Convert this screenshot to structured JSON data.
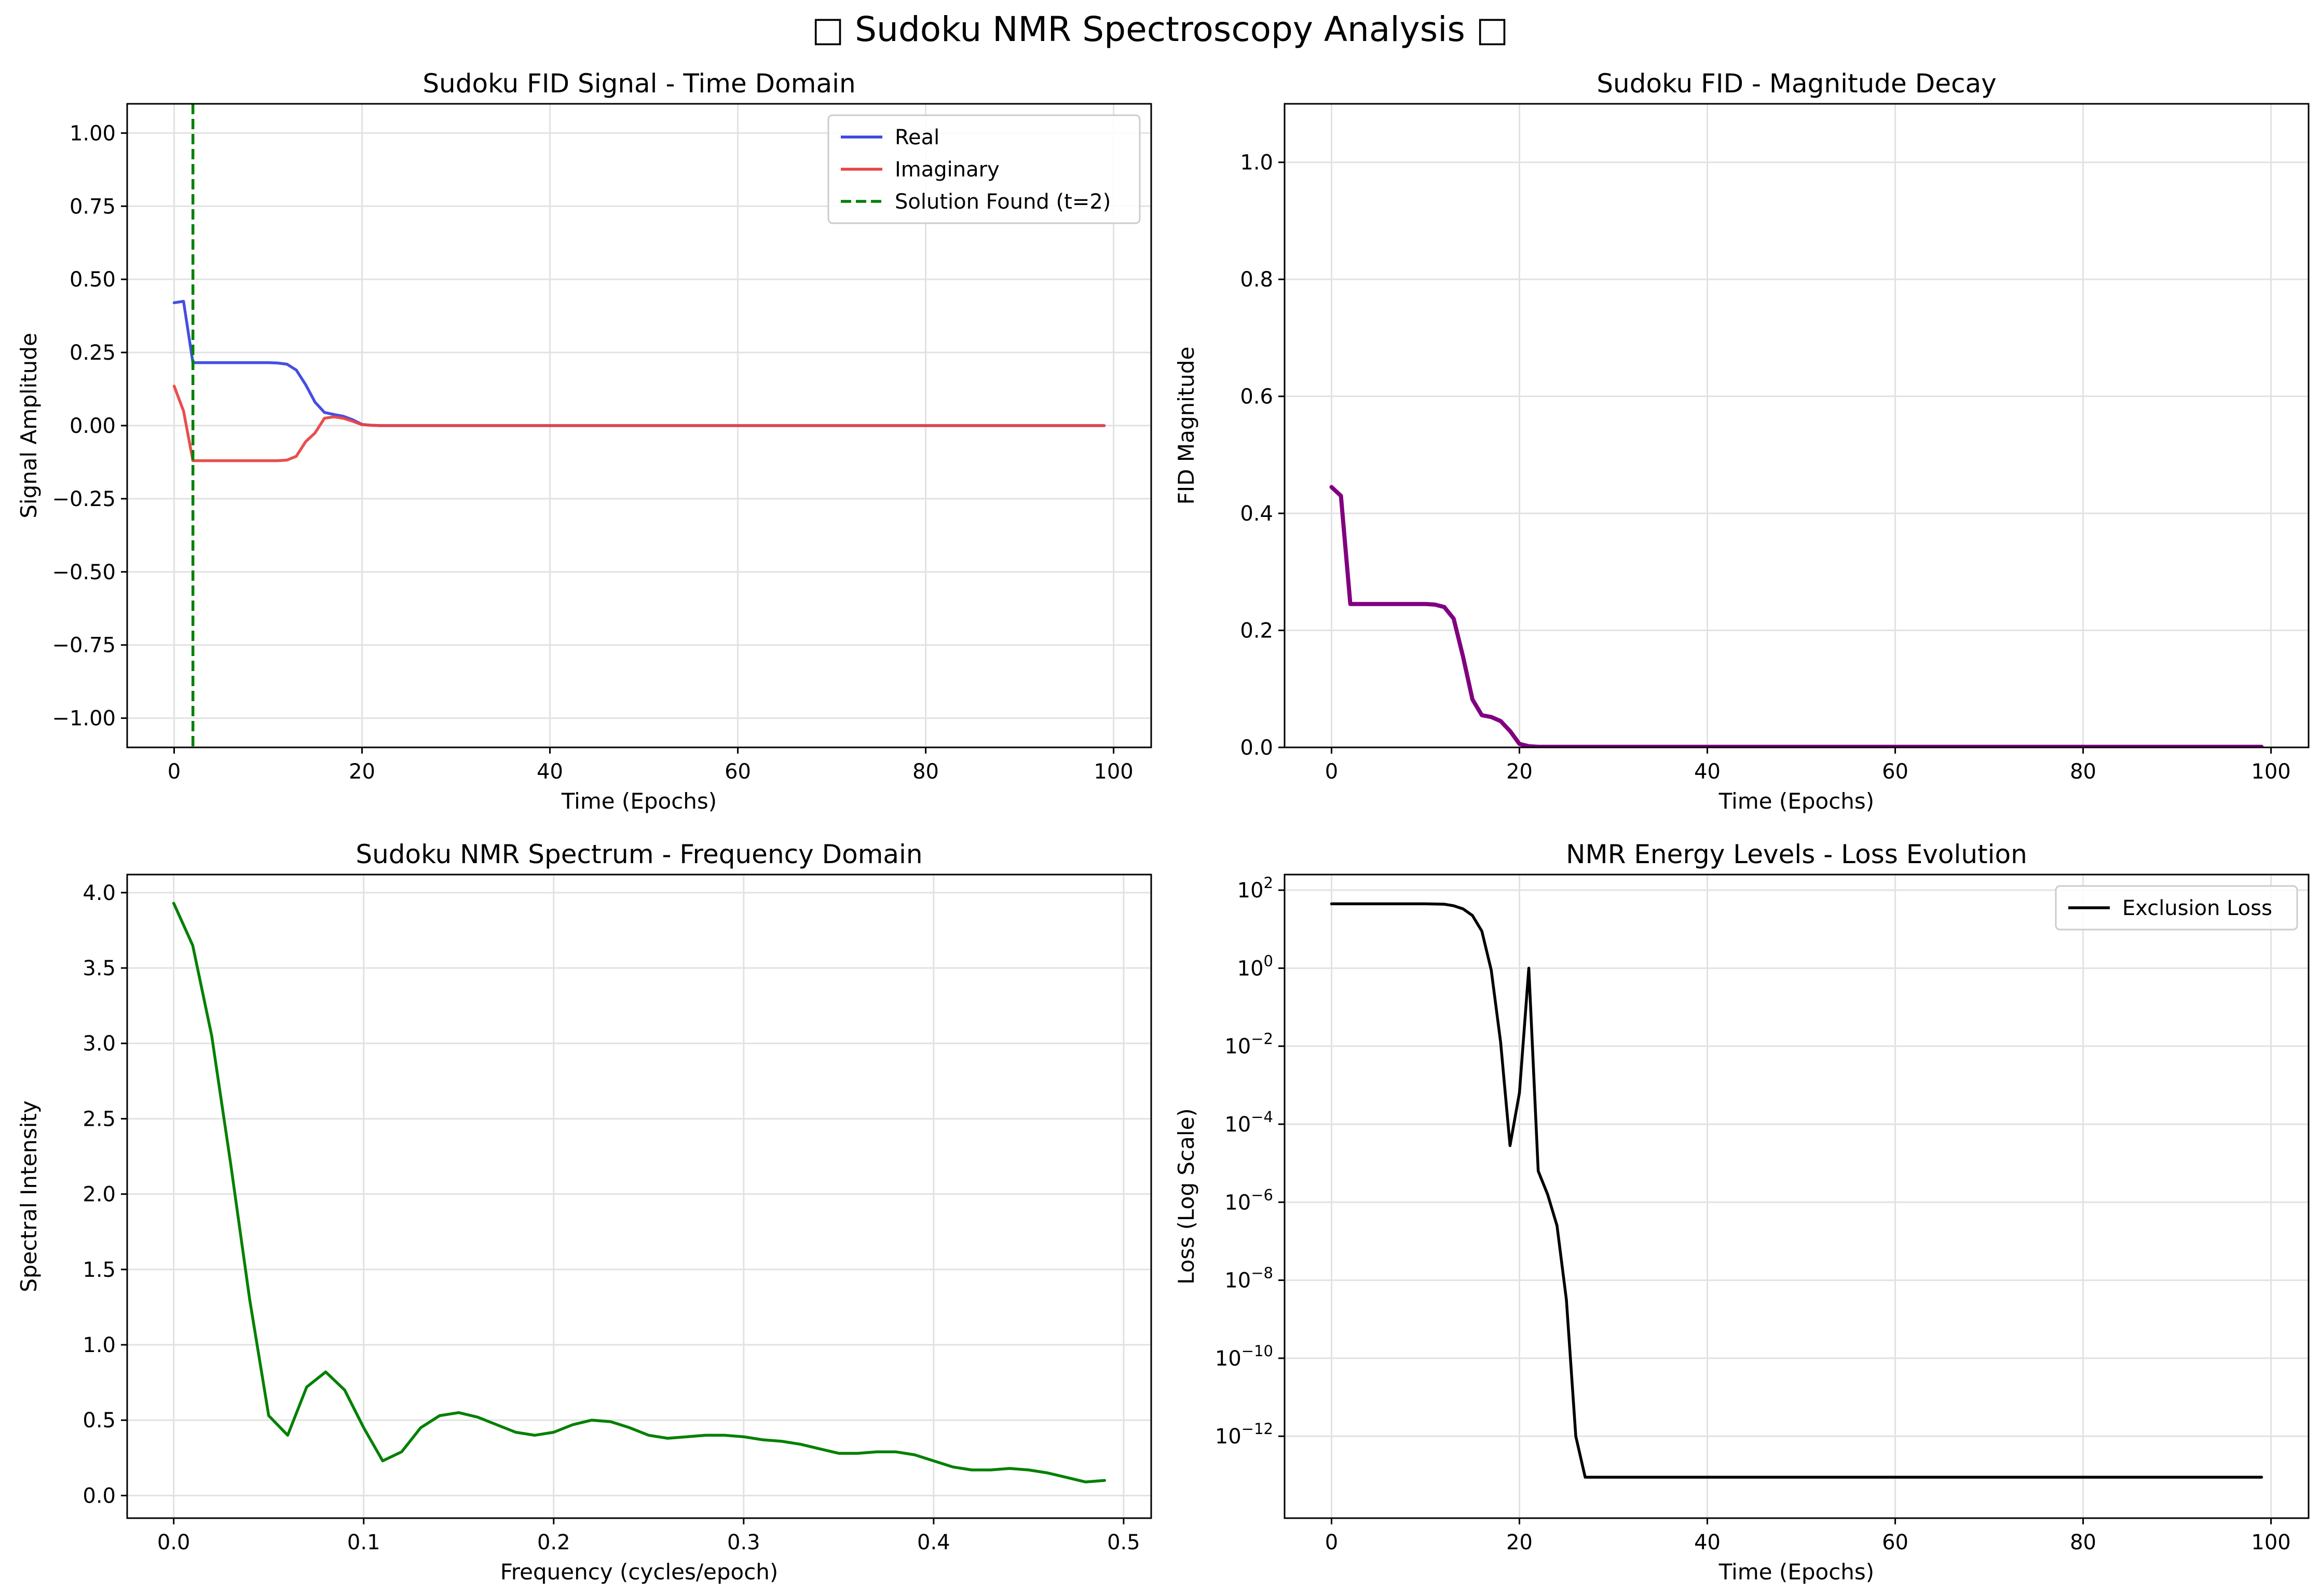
{
  "figure": {
    "title": "□ Sudoku NMR Spectroscopy Analysis □"
  },
  "chart_data": [
    {
      "id": "fid-time",
      "type": "line",
      "title": "Sudoku FID Signal - Time Domain",
      "xlabel": "Time (Epochs)",
      "ylabel": "Signal Amplitude",
      "xlim": [
        -5,
        104
      ],
      "ylim": [
        -1.1,
        1.1
      ],
      "xticks": [
        0,
        20,
        40,
        60,
        80,
        100
      ],
      "xtick_labels": [
        "0",
        "20",
        "40",
        "60",
        "80",
        "100"
      ],
      "yticks": [
        -1.0,
        -0.75,
        -0.5,
        -0.25,
        0.0,
        0.25,
        0.5,
        0.75,
        1.0
      ],
      "ytick_labels": [
        "−1.00",
        "−0.75",
        "−0.50",
        "−0.25",
        "0.00",
        "0.25",
        "0.50",
        "0.75",
        "1.00"
      ],
      "grid": true,
      "legend_position": "top-right",
      "series": [
        {
          "name": "Real",
          "color": "#3b46e0",
          "x": [
            0,
            1,
            2,
            3,
            4,
            5,
            6,
            7,
            8,
            9,
            10,
            11,
            12,
            13,
            14,
            15,
            16,
            17,
            18,
            19,
            20,
            21,
            22,
            30,
            40,
            50,
            60,
            70,
            80,
            90,
            99
          ],
          "y": [
            0.42,
            0.425,
            0.215,
            0.215,
            0.215,
            0.215,
            0.215,
            0.215,
            0.215,
            0.215,
            0.215,
            0.214,
            0.21,
            0.19,
            0.14,
            0.08,
            0.045,
            0.038,
            0.032,
            0.02,
            0.004,
            0.001,
            0,
            0,
            0,
            0,
            0,
            0,
            0,
            0,
            0
          ]
        },
        {
          "name": "Imaginary",
          "color": "#e84444",
          "x": [
            0,
            1,
            2,
            3,
            4,
            5,
            6,
            7,
            8,
            9,
            10,
            11,
            12,
            13,
            14,
            15,
            16,
            17,
            18,
            19,
            20,
            21,
            22,
            30,
            40,
            50,
            60,
            70,
            80,
            90,
            99
          ],
          "y": [
            0.135,
            0.05,
            -0.12,
            -0.12,
            -0.12,
            -0.12,
            -0.12,
            -0.12,
            -0.12,
            -0.12,
            -0.12,
            -0.12,
            -0.118,
            -0.105,
            -0.055,
            -0.025,
            0.025,
            0.03,
            0.025,
            0.015,
            0.003,
            0.001,
            0,
            0,
            0,
            0,
            0,
            0,
            0,
            0,
            0
          ]
        }
      ],
      "vlines": [
        {
          "name": "Solution Found (t=2)",
          "x": 2,
          "color": "#008000",
          "style": "dashed"
        }
      ]
    },
    {
      "id": "fid-magnitude",
      "type": "line",
      "title": "Sudoku FID - Magnitude Decay",
      "xlabel": "Time (Epochs)",
      "ylabel": "FID Magnitude",
      "xlim": [
        -5,
        104
      ],
      "ylim": [
        0,
        1.1
      ],
      "xticks": [
        0,
        20,
        40,
        60,
        80,
        100
      ],
      "xtick_labels": [
        "0",
        "20",
        "40",
        "60",
        "80",
        "100"
      ],
      "yticks": [
        0,
        0.2,
        0.4,
        0.6,
        0.8,
        1.0
      ],
      "ytick_labels": [
        "0.0",
        "0.2",
        "0.4",
        "0.6",
        "0.8",
        "1.0"
      ],
      "grid": true,
      "series": [
        {
          "color": "#800080",
          "x": [
            0,
            1,
            2,
            3,
            4,
            5,
            6,
            7,
            8,
            9,
            10,
            11,
            12,
            13,
            14,
            15,
            16,
            17,
            18,
            19,
            20,
            21,
            22,
            30,
            40,
            50,
            60,
            70,
            80,
            90,
            99
          ],
          "y": [
            0.445,
            0.43,
            0.245,
            0.245,
            0.245,
            0.245,
            0.245,
            0.245,
            0.245,
            0.245,
            0.245,
            0.244,
            0.24,
            0.22,
            0.155,
            0.082,
            0.055,
            0.052,
            0.045,
            0.028,
            0.006,
            0.002,
            0.001,
            0.001,
            0.001,
            0.001,
            0.001,
            0.001,
            0.001,
            0.001,
            0.001
          ]
        }
      ]
    },
    {
      "id": "nmr-spectrum",
      "type": "line",
      "title": "Sudoku NMR Spectrum - Frequency Domain",
      "xlabel": "Frequency (cycles/epoch)",
      "ylabel": "Spectral Intensity",
      "xlim": [
        -0.0245,
        0.5145
      ],
      "ylim": [
        -0.15,
        4.12
      ],
      "xticks": [
        0,
        0.1,
        0.2,
        0.3,
        0.4,
        0.5
      ],
      "xtick_labels": [
        "0.0",
        "0.1",
        "0.2",
        "0.3",
        "0.4",
        "0.5"
      ],
      "yticks": [
        0,
        0.5,
        1.0,
        1.5,
        2.0,
        2.5,
        3.0,
        3.5,
        4.0
      ],
      "ytick_labels": [
        "0.0",
        "0.5",
        "1.0",
        "1.5",
        "2.0",
        "2.5",
        "3.0",
        "3.5",
        "4.0"
      ],
      "grid": true,
      "series": [
        {
          "color": "#008000",
          "x": [
            0,
            0.01,
            0.02,
            0.03,
            0.04,
            0.05,
            0.06,
            0.07,
            0.08,
            0.09,
            0.1,
            0.11,
            0.12,
            0.13,
            0.14,
            0.15,
            0.16,
            0.17,
            0.18,
            0.19,
            0.2,
            0.21,
            0.22,
            0.23,
            0.24,
            0.25,
            0.26,
            0.27,
            0.28,
            0.29,
            0.3,
            0.31,
            0.32,
            0.33,
            0.34,
            0.35,
            0.36,
            0.37,
            0.38,
            0.39,
            0.4,
            0.41,
            0.42,
            0.43,
            0.44,
            0.45,
            0.46,
            0.47,
            0.48,
            0.49
          ],
          "y": [
            3.93,
            3.65,
            3.05,
            2.2,
            1.3,
            0.53,
            0.4,
            0.72,
            0.82,
            0.7,
            0.45,
            0.23,
            0.29,
            0.45,
            0.53,
            0.55,
            0.52,
            0.47,
            0.42,
            0.4,
            0.42,
            0.47,
            0.5,
            0.49,
            0.45,
            0.4,
            0.38,
            0.39,
            0.4,
            0.4,
            0.39,
            0.37,
            0.36,
            0.34,
            0.31,
            0.28,
            0.28,
            0.29,
            0.29,
            0.27,
            0.23,
            0.19,
            0.17,
            0.17,
            0.18,
            0.17,
            0.15,
            0.12,
            0.09,
            0.1
          ]
        }
      ]
    },
    {
      "id": "energy-levels",
      "type": "line",
      "title": "NMR Energy Levels - Loss Evolution",
      "xlabel": "Time (Epochs)",
      "ylabel": "Loss (Log Scale)",
      "yscale": "log",
      "xlim": [
        -5,
        104
      ],
      "ylim_log10": [
        -14.1,
        2.4
      ],
      "xticks": [
        0,
        20,
        40,
        60,
        80,
        100
      ],
      "xtick_labels": [
        "0",
        "20",
        "40",
        "60",
        "80",
        "100"
      ],
      "yticks_log10": [
        2,
        0,
        -2,
        -4,
        -6,
        -8,
        -10,
        -12
      ],
      "grid": true,
      "legend_position": "top-right",
      "series": [
        {
          "name": "Exclusion Loss",
          "color": "#000000",
          "x": [
            0,
            5,
            10,
            12,
            13,
            14,
            15,
            16,
            17,
            18,
            19,
            20,
            21,
            22,
            23,
            24,
            25,
            26,
            27,
            30,
            40,
            50,
            60,
            70,
            80,
            90,
            99
          ],
          "y_log10": [
            1.65,
            1.65,
            1.65,
            1.64,
            1.6,
            1.52,
            1.35,
            0.95,
            -0.05,
            -1.9,
            -4.55,
            -3.2,
            0.0,
            -5.2,
            -5.8,
            -6.6,
            -8.5,
            -12.0,
            -13.05,
            -13.05,
            -13.05,
            -13.05,
            -13.05,
            -13.05,
            -13.05,
            -13.05,
            -13.05
          ]
        }
      ]
    }
  ]
}
